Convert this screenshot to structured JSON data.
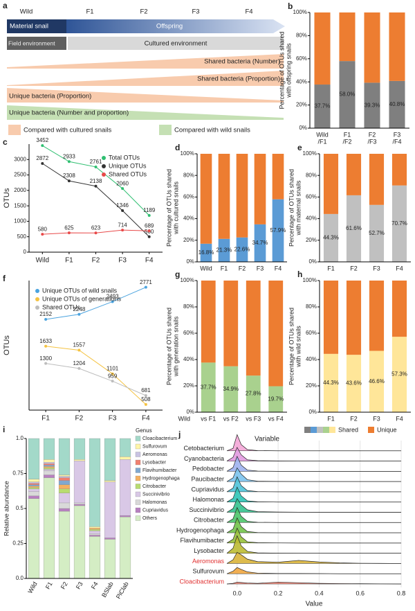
{
  "diagram": {
    "panel": "a",
    "generations": [
      "Wild",
      "F1",
      "F2",
      "F3",
      "F4"
    ],
    "material": "Material snail",
    "offspring": "Offspring",
    "field": "Field environment",
    "cultured": "Cultured environment",
    "shared_number": "Shared bacteria (Number)",
    "shared_proportion": "Shared bacteria (Proportion)",
    "unique_proportion": "Unique bacteria (Proportion)",
    "unique_both": "Unique bacteria (Number and proportion)",
    "legend_cultured": "Compared with cultured snails",
    "legend_wild": "Compared with wild snails"
  },
  "chart_data": [
    {
      "type": "bar",
      "panel": "b",
      "stacked": true,
      "ylabel": [
        "Percentage of OTUs shared",
        "with offspring snails"
      ],
      "categories": [
        [
          "Wild",
          "/F1"
        ],
        [
          "F1",
          "/F2"
        ],
        [
          "F2",
          "/F3"
        ],
        [
          "F3",
          "/F4"
        ]
      ],
      "series": [
        {
          "color": "#7f7f7f",
          "values": [
            37.7,
            58.0,
            39.3,
            40.8
          ],
          "value_labels": [
            "37.7%",
            "58.0%",
            "39.3%",
            "40.8%"
          ]
        },
        {
          "color": "#ed7d31",
          "values": [
            62.3,
            42.0,
            60.7,
            59.2
          ]
        }
      ],
      "ylim": [
        0,
        100
      ],
      "yticks": [
        {
          "value": 0,
          "label": "0%"
        },
        {
          "value": 20,
          "label": "20%"
        },
        {
          "value": 40,
          "label": "40%"
        },
        {
          "value": 60,
          "label": "60%"
        },
        {
          "value": 80,
          "label": "80%"
        },
        {
          "value": 100,
          "label": "100%"
        }
      ]
    },
    {
      "type": "line",
      "panel": "c",
      "ylabel": "OTUs",
      "categories": [
        "Wild",
        "F1",
        "F2",
        "F3",
        "F4"
      ],
      "series": [
        {
          "name": "Total OTUs",
          "color": "#2fbf71",
          "values": [
            3452,
            2933,
            2761,
            2060,
            1189
          ]
        },
        {
          "name": "Unique OTUs",
          "color": "#333333",
          "values": [
            2872,
            2308,
            2138,
            1346,
            500
          ]
        },
        {
          "name": "Shared OTUs",
          "color": "#e84a4a",
          "values": [
            580,
            625,
            623,
            714,
            689
          ]
        }
      ],
      "ylim": [
        0,
        3500
      ],
      "yticks": [
        0,
        500,
        1000,
        1500,
        2000,
        2500,
        3000
      ]
    },
    {
      "type": "bar",
      "panel": "d",
      "stacked": true,
      "ylabel": [
        "Percentage of OTUs shared",
        "with cultured snails"
      ],
      "categories": [
        "Wild",
        "F1",
        "F2",
        "F3",
        "F4"
      ],
      "series": [
        {
          "color": "#5b9bd5",
          "values": [
            16.8,
            21.3,
            22.6,
            34.7,
            57.9
          ],
          "value_labels": [
            "16.8%",
            "21.3%",
            "22.6%",
            "34.7%",
            "57.9%"
          ]
        },
        {
          "color": "#ed7d31",
          "values": [
            83.2,
            78.7,
            77.4,
            65.3,
            42.1
          ]
        }
      ],
      "ylim": [
        0,
        100
      ],
      "yticks": [
        {
          "value": 0,
          "label": "0%"
        },
        {
          "value": 20,
          "label": "20%"
        },
        {
          "value": 40,
          "label": "40%"
        },
        {
          "value": 60,
          "label": "60%"
        },
        {
          "value": 80,
          "label": "80%"
        },
        {
          "value": 100,
          "label": "100%"
        }
      ]
    },
    {
      "type": "bar",
      "panel": "e",
      "stacked": true,
      "ylabel": [
        "Percentage of OTUs shared",
        "with maternal snails"
      ],
      "categories": [
        "F1",
        "F2",
        "F3",
        "F4"
      ],
      "series": [
        {
          "color": "#c0c0c0",
          "values": [
            44.3,
            61.6,
            52.7,
            70.7
          ],
          "value_labels": [
            "44.3%",
            "61.6%",
            "52.7%",
            "70.7%"
          ]
        },
        {
          "color": "#ed7d31",
          "values": [
            55.7,
            38.4,
            47.3,
            29.3
          ]
        }
      ],
      "ylim": [
        0,
        100
      ],
      "yticks": [
        {
          "value": 0,
          "label": "0%"
        },
        {
          "value": 20,
          "label": "20%"
        },
        {
          "value": 40,
          "label": "40%"
        },
        {
          "value": 60,
          "label": "60%"
        },
        {
          "value": 80,
          "label": "80%"
        },
        {
          "value": 100,
          "label": "100%"
        }
      ]
    },
    {
      "type": "line",
      "panel": "f",
      "ylabel": "OTUs",
      "categories": [
        "F1",
        "F2",
        "F3",
        "F4"
      ],
      "series": [
        {
          "name": "Unique OTUs of wild snails",
          "color": "#4aa3df",
          "values": [
            2152,
            2248,
            2493,
            2771
          ]
        },
        {
          "name": "Unique OTUs of generations",
          "color": "#f5c342",
          "values": [
            1633,
            1557,
            1101,
            508
          ]
        },
        {
          "name": "Shared OTUs",
          "color": "#bdbdbd",
          "values": [
            1300,
            1204,
            959,
            681
          ]
        }
      ],
      "ylim": [
        400,
        2900
      ]
    },
    {
      "type": "bar",
      "panel": "g",
      "stacked": true,
      "ylabel": [
        "Percentage of OTUs shared",
        "with generation snails"
      ],
      "xlabel_prefix": "Wild",
      "categories": [
        "vs F1",
        "vs F2",
        "vs F3",
        "vs F4"
      ],
      "series": [
        {
          "color": "#a9d18e",
          "values": [
            37.7,
            34.9,
            27.8,
            19.7
          ],
          "value_labels": [
            "37.7%",
            "34.9%",
            "27.8%",
            "19.7%"
          ]
        },
        {
          "color": "#ed7d31",
          "values": [
            62.3,
            65.1,
            72.2,
            80.3
          ]
        }
      ],
      "ylim": [
        0,
        100
      ],
      "yticks": [
        {
          "value": 0,
          "label": "0%"
        },
        {
          "value": 20,
          "label": "20%"
        },
        {
          "value": 40,
          "label": "40%"
        },
        {
          "value": 60,
          "label": "60%"
        },
        {
          "value": 80,
          "label": "80%"
        },
        {
          "value": 100,
          "label": "100%"
        }
      ]
    },
    {
      "type": "bar",
      "panel": "h",
      "stacked": true,
      "legend": true,
      "ylabel": [
        "Percentage of OTUs shared",
        "with wild snails"
      ],
      "categories": [
        "F1",
        "F2",
        "F3",
        "F4"
      ],
      "series": [
        {
          "name": "Shared",
          "color": "#ffe699",
          "values": [
            44.3,
            43.6,
            46.6,
            57.3
          ],
          "value_labels": [
            "44.3%",
            "43.6%",
            "46.6%",
            "57.3%"
          ]
        },
        {
          "name": "Unique",
          "color": "#ed7d31",
          "values": [
            55.7,
            56.4,
            53.4,
            42.7
          ]
        }
      ],
      "ylim": [
        0,
        100
      ],
      "yticks": [
        {
          "value": 0,
          "label": "0%"
        },
        {
          "value": 20,
          "label": "20%"
        },
        {
          "value": 40,
          "label": "40%"
        },
        {
          "value": 60,
          "label": "60%"
        },
        {
          "value": 80,
          "label": "80%"
        },
        {
          "value": 100,
          "label": "100%"
        }
      ]
    },
    {
      "type": "stacked_bar",
      "panel": "i",
      "ylabel": "Relative abundance",
      "legend_title": "Genus",
      "categories": [
        "Wild",
        "F1",
        "F2",
        "F3",
        "F4",
        "BSlab",
        "PiClab"
      ],
      "series": [
        {
          "name": "Cloacibacterium",
          "color": "#a3d9c9",
          "values": [
            0.29,
            0.15,
            0.26,
            0.15,
            0.63,
            0.3,
            0.13
          ]
        },
        {
          "name": "Sulfurovum",
          "color": "#fff5a8",
          "values": [
            0.02,
            0.02,
            0.01,
            0.01,
            0.01,
            0.01,
            0.02
          ]
        },
        {
          "name": "Aeromonas",
          "color": "#c9c3e3",
          "values": [
            0.01,
            0.01,
            0.01,
            0,
            0,
            0,
            0
          ]
        },
        {
          "name": "Lysobacter",
          "color": "#f08070",
          "values": [
            0.01,
            0.01,
            0.02,
            0,
            0,
            0,
            0
          ]
        },
        {
          "name": "Flavihumibacter",
          "color": "#7fa8d0",
          "values": [
            0.01,
            0.01,
            0.03,
            0,
            0,
            0,
            0
          ]
        },
        {
          "name": "Hydrogenophaga",
          "color": "#f4b060",
          "values": [
            0.01,
            0.01,
            0.03,
            0,
            0.01,
            0,
            0
          ]
        },
        {
          "name": "Citrobacter",
          "color": "#b8dc70",
          "values": [
            0.01,
            0.01,
            0.03,
            0,
            0.01,
            0,
            0
          ]
        },
        {
          "name": "Succinivibrio",
          "color": "#d9c8e6",
          "values": [
            0.02,
            0.01,
            0.07,
            0.3,
            0.02,
            0.4,
            0.4
          ]
        },
        {
          "name": "Halomonas",
          "color": "#d9d9d9",
          "values": [
            0.03,
            0.03,
            0.04,
            0.01,
            0.01,
            0,
            0
          ]
        },
        {
          "name": "Cupriavidus",
          "color": "#b880c0",
          "values": [
            0.02,
            0.02,
            0.02,
            0.01,
            0.01,
            0.01,
            0.01
          ]
        },
        {
          "name": "Others",
          "color": "#d4edc4",
          "values": [
            0.57,
            0.72,
            0.48,
            0.52,
            0.3,
            0.28,
            0.44
          ]
        }
      ],
      "ylim": [
        0,
        1
      ],
      "yticks": [
        {
          "value": 0,
          "label": "0.0"
        },
        0.25,
        0.5,
        0.75,
        {
          "value": 1,
          "label": "1.0"
        }
      ]
    },
    {
      "type": "ridgeline",
      "panel": "j",
      "ylabel": "Variable",
      "xlabel": "Value",
      "x": [
        -0.05,
        -0.02,
        0,
        0.02,
        0.05,
        0.1,
        0.2,
        0.3,
        0.4,
        0.5,
        0.6,
        0.7,
        0.8
      ],
      "series": [
        {
          "name": "Cetobacterium",
          "color": "#f4a6d7",
          "values": [
            0,
            0.2,
            1.3,
            0.5,
            0.1,
            0.02,
            0,
            0,
            0,
            0,
            0,
            0,
            0
          ]
        },
        {
          "name": "Cyanobacteria",
          "color": "#e29ae0",
          "values": [
            0,
            0.3,
            1.1,
            0.5,
            0.1,
            0.03,
            0.01,
            0,
            0,
            0,
            0,
            0,
            0
          ]
        },
        {
          "name": "Pedobacter",
          "color": "#9fb2f0",
          "values": [
            0,
            0.3,
            1.2,
            0.5,
            0.1,
            0.02,
            0,
            0,
            0,
            0,
            0,
            0,
            0
          ]
        },
        {
          "name": "Paucibacter",
          "color": "#7cc3ee",
          "values": [
            0,
            0.3,
            1.1,
            0.6,
            0.15,
            0.03,
            0.01,
            0,
            0,
            0,
            0,
            0,
            0
          ]
        },
        {
          "name": "Cupriavidus",
          "color": "#4fc3d9",
          "values": [
            0,
            0.3,
            1.2,
            0.5,
            0.1,
            0.02,
            0,
            0,
            0,
            0,
            0,
            0,
            0
          ]
        },
        {
          "name": "Halomonas",
          "color": "#2ec4b6",
          "values": [
            0,
            0.3,
            1.2,
            0.5,
            0.1,
            0.02,
            0,
            0,
            0,
            0,
            0,
            0,
            0
          ]
        },
        {
          "name": "Succinivibrio",
          "color": "#35c28f",
          "values": [
            0,
            0.3,
            1.1,
            0.6,
            0.2,
            0.05,
            0.02,
            0.01,
            0,
            0,
            0,
            0,
            0
          ]
        },
        {
          "name": "Citrobacter",
          "color": "#4cc46a",
          "values": [
            0,
            0.3,
            1.2,
            0.5,
            0.1,
            0.02,
            0,
            0,
            0,
            0,
            0,
            0,
            0
          ]
        },
        {
          "name": "Hydrogenophaga",
          "color": "#72c34a",
          "values": [
            0,
            0.3,
            1.2,
            0.5,
            0.1,
            0.02,
            0,
            0,
            0,
            0,
            0,
            0,
            0
          ]
        },
        {
          "name": "Flavihumibacter",
          "color": "#97c03a",
          "values": [
            0,
            0.3,
            1.2,
            0.5,
            0.1,
            0.03,
            0.01,
            0,
            0,
            0,
            0,
            0,
            0
          ]
        },
        {
          "name": "Lysobacter",
          "color": "#bcbb33",
          "values": [
            0,
            0.4,
            1.4,
            0.6,
            0.15,
            0.03,
            0.01,
            0,
            0,
            0,
            0,
            0,
            0
          ]
        },
        {
          "name": "Aeromonas",
          "color": "#d9b43a",
          "label_color": "#e03030",
          "values": [
            0,
            0.3,
            0.9,
            0.7,
            0.35,
            0.15,
            0.1,
            0.25,
            0.12,
            0.05,
            0.02,
            0.01,
            0
          ]
        },
        {
          "name": "Sulfurovum",
          "color": "#f0a640",
          "values": [
            0,
            0.2,
            0.5,
            0.35,
            0.15,
            0.05,
            0.02,
            0.02,
            0.01,
            0,
            0,
            0,
            0
          ]
        },
        {
          "name": "Cloacibacterium",
          "color": "#f48a7a",
          "label_color": "#e03030",
          "values": [
            0,
            0.05,
            0.15,
            0.12,
            0.08,
            0.05,
            0.15,
            0.1,
            0.05,
            0.03,
            0.02,
            0.01,
            0
          ]
        }
      ],
      "xlim": [
        -0.05,
        0.8
      ],
      "xticks": [
        {
          "value": 0,
          "label": "0.0"
        },
        0.2,
        0.4,
        0.6,
        0.8
      ],
      "grid": true
    }
  ]
}
